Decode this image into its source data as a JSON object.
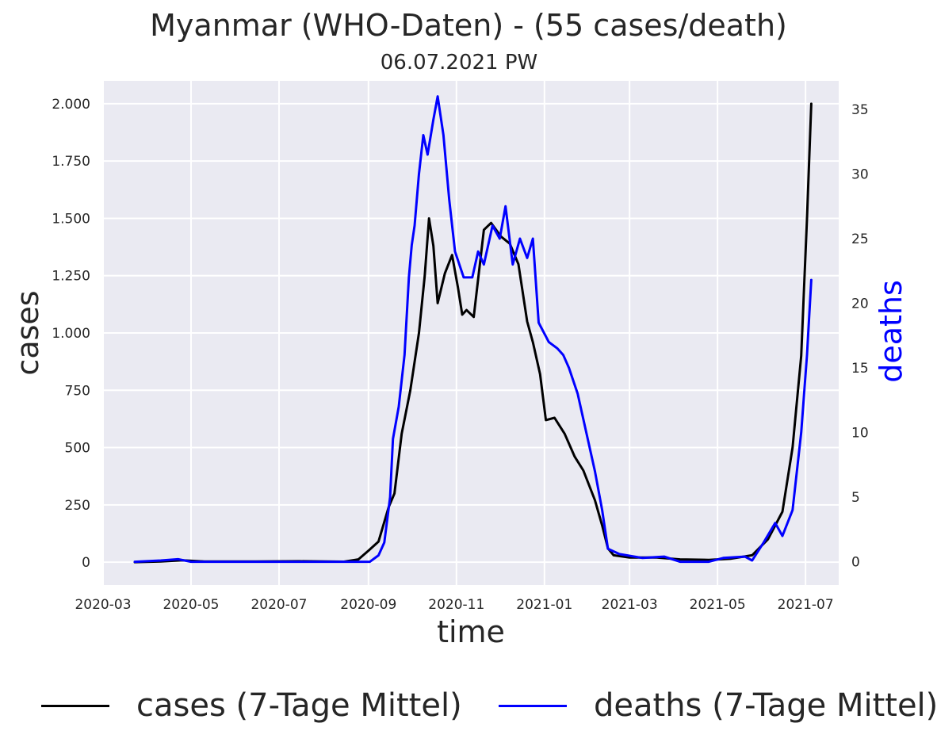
{
  "title": "Myanmar (WHO-Daten) - (55 cases/death)",
  "subtitle": "06.07.2021 PW",
  "colors": {
    "background": "#eaeaf2",
    "grid": "#ffffff",
    "cases": "#000000",
    "deaths": "#0000ff",
    "text": "#262626"
  },
  "legend": {
    "cases": "cases (7-Tage Mittel)",
    "deaths": "deaths (7-Tage Mittel)"
  },
  "chart_data": {
    "type": "line",
    "title": "Myanmar (WHO-Daten) - (55 cases/death)",
    "subtitle": "06.07.2021 PW",
    "xlabel": "time",
    "ylabel": "cases",
    "y2label": "deaths",
    "xlim": [
      "2020-03-01",
      "2021-07-24"
    ],
    "ylim": [
      -100,
      2100
    ],
    "y2lim": [
      -1.8,
      37.2
    ],
    "x_ticks": [
      "2020-03",
      "2020-05",
      "2020-07",
      "2020-09",
      "2020-11",
      "2021-01",
      "2021-03",
      "2021-05",
      "2021-07"
    ],
    "y_ticks": [
      0,
      250,
      500,
      750,
      1000,
      1250,
      1500,
      1750,
      2000
    ],
    "y_tick_labels": [
      "0",
      "250",
      "500",
      "750",
      "1.000",
      "1.250",
      "1.500",
      "1.750",
      "2.000"
    ],
    "y2_ticks": [
      0,
      5,
      10,
      15,
      20,
      25,
      30,
      35
    ],
    "y2_tick_labels": [
      "0",
      "5",
      "10",
      "15",
      "20",
      "25",
      "30",
      "35"
    ],
    "grid": true,
    "legend_position": "bottom",
    "series": [
      {
        "name": "cases (7-Tage Mittel)",
        "axis": "left",
        "points": [
          [
            "2020-03-23",
            0
          ],
          [
            "2020-04-10",
            3
          ],
          [
            "2020-04-25",
            8
          ],
          [
            "2020-05-10",
            3
          ],
          [
            "2020-06-15",
            3
          ],
          [
            "2020-07-15",
            4
          ],
          [
            "2020-08-15",
            2
          ],
          [
            "2020-08-25",
            12
          ],
          [
            "2020-09-01",
            50
          ],
          [
            "2020-09-08",
            90
          ],
          [
            "2020-09-15",
            240
          ],
          [
            "2020-09-19",
            300
          ],
          [
            "2020-09-24",
            560
          ],
          [
            "2020-09-30",
            750
          ],
          [
            "2020-10-06",
            1000
          ],
          [
            "2020-10-10",
            1250
          ],
          [
            "2020-10-13",
            1500
          ],
          [
            "2020-10-16",
            1380
          ],
          [
            "2020-10-19",
            1130
          ],
          [
            "2020-10-24",
            1260
          ],
          [
            "2020-10-29",
            1340
          ],
          [
            "2020-11-02",
            1200
          ],
          [
            "2020-11-05",
            1080
          ],
          [
            "2020-11-08",
            1100
          ],
          [
            "2020-11-13",
            1070
          ],
          [
            "2020-11-20",
            1450
          ],
          [
            "2020-11-25",
            1480
          ],
          [
            "2020-12-02",
            1420
          ],
          [
            "2020-12-08",
            1390
          ],
          [
            "2020-12-14",
            1300
          ],
          [
            "2020-12-20",
            1050
          ],
          [
            "2020-12-24",
            960
          ],
          [
            "2020-12-29",
            820
          ],
          [
            "2021-01-02",
            620
          ],
          [
            "2021-01-08",
            630
          ],
          [
            "2021-01-15",
            560
          ],
          [
            "2021-01-22",
            460
          ],
          [
            "2021-01-28",
            400
          ],
          [
            "2021-02-05",
            270
          ],
          [
            "2021-02-10",
            160
          ],
          [
            "2021-02-14",
            60
          ],
          [
            "2021-02-18",
            30
          ],
          [
            "2021-03-01",
            20
          ],
          [
            "2021-03-20",
            20
          ],
          [
            "2021-04-05",
            12
          ],
          [
            "2021-04-25",
            10
          ],
          [
            "2021-05-10",
            15
          ],
          [
            "2021-05-25",
            30
          ],
          [
            "2021-06-05",
            100
          ],
          [
            "2021-06-15",
            220
          ],
          [
            "2021-06-22",
            500
          ],
          [
            "2021-06-28",
            900
          ],
          [
            "2021-07-02",
            1500
          ],
          [
            "2021-07-05",
            2000
          ]
        ]
      },
      {
        "name": "deaths (7-Tage Mittel)",
        "axis": "right",
        "points": [
          [
            "2020-03-23",
            0
          ],
          [
            "2020-04-10",
            0.1
          ],
          [
            "2020-04-22",
            0.2
          ],
          [
            "2020-05-01",
            0
          ],
          [
            "2020-06-15",
            0
          ],
          [
            "2020-08-01",
            0
          ],
          [
            "2020-09-02",
            0
          ],
          [
            "2020-09-08",
            0.5
          ],
          [
            "2020-09-12",
            1.5
          ],
          [
            "2020-09-16",
            5
          ],
          [
            "2020-09-18",
            9.5
          ],
          [
            "2020-09-22",
            12
          ],
          [
            "2020-09-26",
            16
          ],
          [
            "2020-09-29",
            22
          ],
          [
            "2020-10-01",
            24.5
          ],
          [
            "2020-10-03",
            26
          ],
          [
            "2020-10-06",
            30
          ],
          [
            "2020-10-09",
            33
          ],
          [
            "2020-10-12",
            31.5
          ],
          [
            "2020-10-16",
            34.2
          ],
          [
            "2020-10-19",
            36
          ],
          [
            "2020-10-23",
            33
          ],
          [
            "2020-10-27",
            28
          ],
          [
            "2020-10-31",
            24
          ],
          [
            "2020-11-06",
            22
          ],
          [
            "2020-11-12",
            22
          ],
          [
            "2020-11-16",
            24
          ],
          [
            "2020-11-20",
            23
          ],
          [
            "2020-11-26",
            26
          ],
          [
            "2020-12-01",
            25
          ],
          [
            "2020-12-05",
            27.5
          ],
          [
            "2020-12-10",
            23
          ],
          [
            "2020-12-15",
            25
          ],
          [
            "2020-12-20",
            23.5
          ],
          [
            "2020-12-24",
            25
          ],
          [
            "2020-12-28",
            18.5
          ],
          [
            "2021-01-04",
            17
          ],
          [
            "2021-01-10",
            16.5
          ],
          [
            "2021-01-14",
            16
          ],
          [
            "2021-01-18",
            15
          ],
          [
            "2021-01-24",
            13
          ],
          [
            "2021-01-30",
            10
          ],
          [
            "2021-02-05",
            7
          ],
          [
            "2021-02-10",
            4
          ],
          [
            "2021-02-14",
            1
          ],
          [
            "2021-02-22",
            0.6
          ],
          [
            "2021-03-10",
            0.3
          ],
          [
            "2021-03-25",
            0.4
          ],
          [
            "2021-04-05",
            0
          ],
          [
            "2021-04-25",
            0
          ],
          [
            "2021-05-05",
            0.3
          ],
          [
            "2021-05-20",
            0.4
          ],
          [
            "2021-05-25",
            0.1
          ],
          [
            "2021-06-02",
            1.5
          ],
          [
            "2021-06-10",
            3
          ],
          [
            "2021-06-15",
            2
          ],
          [
            "2021-06-22",
            4
          ],
          [
            "2021-06-28",
            10
          ],
          [
            "2021-07-02",
            16
          ],
          [
            "2021-07-05",
            21.8
          ]
        ]
      }
    ]
  }
}
